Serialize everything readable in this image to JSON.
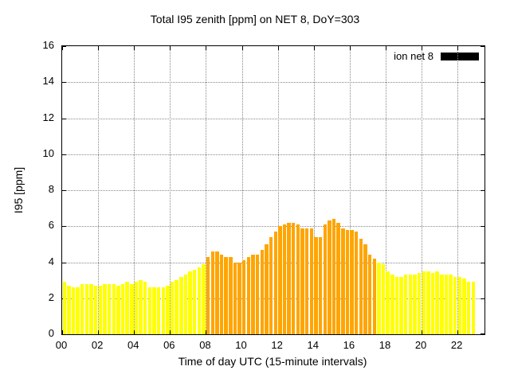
{
  "title": "Total I95 zenith [ppm] on NET 8, DoY=303",
  "chart_data": {
    "type": "bar",
    "title": "Total I95 zenith [ppm] on NET 8, DoY=303",
    "xlabel": "Time of day UTC (15-minute intervals)",
    "ylabel": "I95 [ppm]",
    "ylim": [
      0,
      16
    ],
    "ytick_step": 2,
    "xlim_hours": [
      0,
      23.5
    ],
    "xtick_hours": [
      0,
      2,
      4,
      6,
      8,
      10,
      12,
      14,
      16,
      18,
      20,
      22
    ],
    "xtick_labels": [
      "00",
      "02",
      "04",
      "06",
      "08",
      "10",
      "12",
      "14",
      "16",
      "18",
      "20",
      "22"
    ],
    "interval_minutes": 15,
    "start_time": "00:00",
    "grid": true,
    "legend": {
      "label": "ion net 8",
      "color": "#000000",
      "position": "top-right"
    },
    "colors": {
      "default": "#ffff00",
      "highlight": "#ffa500",
      "highlight_range": [
        32,
        69
      ]
    },
    "values": [
      2.9,
      2.7,
      2.6,
      2.6,
      2.8,
      2.8,
      2.8,
      2.7,
      2.7,
      2.8,
      2.8,
      2.8,
      2.7,
      2.8,
      2.9,
      2.8,
      2.9,
      3.0,
      2.9,
      2.6,
      2.6,
      2.6,
      2.6,
      2.7,
      2.9,
      3.0,
      3.2,
      3.3,
      3.5,
      3.6,
      3.7,
      3.9,
      4.3,
      4.6,
      4.6,
      4.4,
      4.3,
      4.3,
      4.0,
      4.0,
      4.1,
      4.3,
      4.4,
      4.4,
      4.7,
      5.0,
      5.4,
      5.7,
      6.0,
      6.1,
      6.2,
      6.2,
      6.1,
      5.9,
      5.9,
      5.9,
      5.4,
      5.4,
      6.1,
      6.3,
      6.4,
      6.2,
      5.9,
      5.8,
      5.8,
      5.7,
      5.3,
      5.0,
      4.4,
      4.2,
      4.0,
      3.9,
      3.5,
      3.3,
      3.2,
      3.2,
      3.3,
      3.3,
      3.3,
      3.4,
      3.5,
      3.5,
      3.4,
      3.5,
      3.3,
      3.3,
      3.3,
      3.2,
      3.2,
      3.1,
      2.9,
      2.9
    ]
  }
}
